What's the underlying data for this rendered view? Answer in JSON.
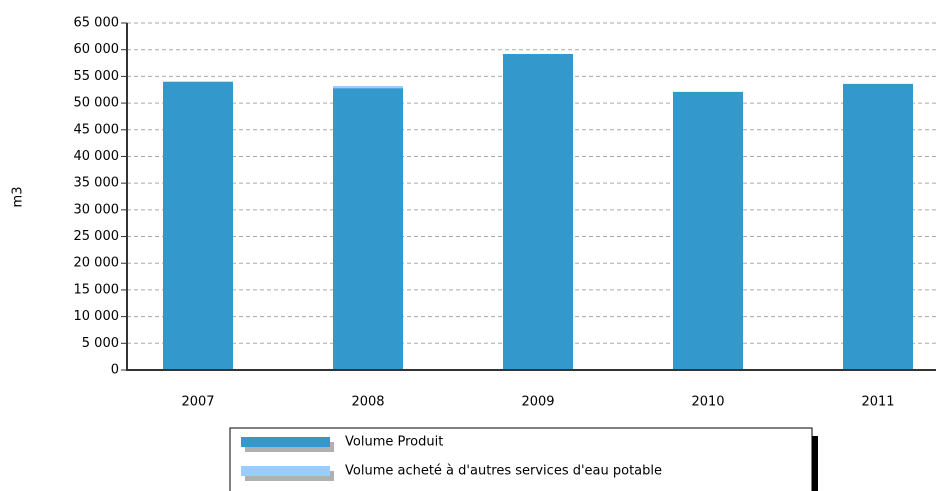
{
  "chart_data": {
    "type": "bar",
    "stacked": true,
    "y_label": "m3",
    "categories": [
      "2007",
      "2008",
      "2009",
      "2010",
      "2011"
    ],
    "series": [
      {
        "name": "Volume Produit",
        "color": "#3399cc",
        "values": [
          54000,
          52800,
          59200,
          52100,
          53600
        ]
      },
      {
        "name": "Volume acheté à d'autres services d'eau potable",
        "color": "#99ccff",
        "values": [
          0,
          400,
          0,
          0,
          0
        ]
      }
    ],
    "ylim": [
      0,
      65000
    ],
    "yticks": [
      0,
      {
        "value": 5000,
        "label": "5 000"
      },
      {
        "value": 10000,
        "label": "10 000"
      },
      {
        "value": 15000,
        "label": "15 000"
      },
      {
        "value": 20000,
        "label": "20 000"
      },
      {
        "value": 25000,
        "label": "25 000"
      },
      {
        "value": 30000,
        "label": "30 000"
      },
      {
        "value": 35000,
        "label": "35 000"
      },
      {
        "value": 40000,
        "label": "40 000"
      },
      {
        "value": 45000,
        "label": "45 000"
      },
      {
        "value": 50000,
        "label": "50 000"
      },
      {
        "value": 55000,
        "label": "55 000"
      },
      {
        "value": 60000,
        "label": "60 000"
      },
      {
        "value": 65000,
        "label": "65 000"
      }
    ],
    "grid": true
  }
}
